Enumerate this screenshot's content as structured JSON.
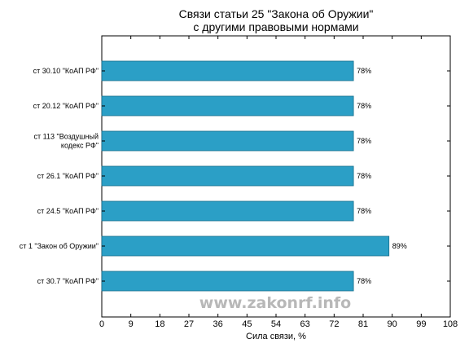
{
  "chart_data": {
    "type": "bar",
    "orientation": "horizontal",
    "title_lines": [
      "Связи статьи 25 \"Закона об Оружии\"",
      "с другими правовыми нормами"
    ],
    "categories": [
      [
        "ст 30.10 \"КоАП РФ\""
      ],
      [
        "ст 20.12 \"КоАП РФ\""
      ],
      [
        "ст 113 \"Воздушный",
        "кодекс РФ\""
      ],
      [
        "ст 26.1 \"КоАП РФ\""
      ],
      [
        "ст 24.5 \"КоАП РФ\""
      ],
      [
        "ст 1 \"Закон об Оружии\""
      ],
      [
        "ст 30.7 \"КоАП РФ\""
      ]
    ],
    "values": [
      78,
      78,
      78,
      78,
      78,
      89,
      78
    ],
    "value_labels": [
      "78%",
      "78%",
      "78%",
      "78%",
      "78%",
      "89%",
      "78%"
    ],
    "xlabel": "Сила связи, %",
    "xlim": [
      0,
      108
    ],
    "xticks": [
      0,
      9,
      18,
      27,
      36,
      45,
      54,
      63,
      72,
      81,
      90,
      99,
      108
    ],
    "bar_color": "#2b9fc6",
    "bar_edge_color": "#1a6f8c",
    "grid": false,
    "watermark": "www.zakonrf.info"
  }
}
